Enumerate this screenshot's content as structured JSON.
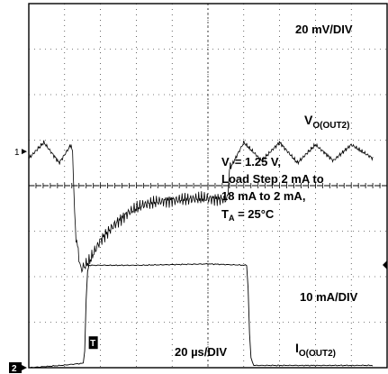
{
  "chart_data": {
    "type": "line",
    "title": "",
    "x_scale": "20 µs/DIV",
    "grid": true,
    "conditions": [
      "V_I = 1.25 V,",
      "Load Step 2 mA to",
      "18 mA to 2 mA,",
      "T_A = 25°C"
    ],
    "series": [
      {
        "name": "VO(OUT2)",
        "scale": "20 mV/DIV",
        "channel_marker": "1",
        "x_div": [
          0.0,
          0.42,
          0.85,
          1.18,
          1.22,
          1.3,
          1.45,
          1.7,
          2.0,
          2.4,
          2.8,
          3.2,
          3.6,
          4.0,
          4.8,
          5.55,
          5.6,
          6.0,
          6.5,
          7.0,
          7.5,
          8.0,
          8.5,
          9.0,
          9.6
        ],
        "y_div": [
          0.6,
          0.95,
          0.5,
          0.9,
          0.72,
          -1.0,
          -1.85,
          -1.65,
          -1.2,
          -0.85,
          -0.58,
          -0.42,
          -0.35,
          -0.32,
          -0.28,
          -0.3,
          0.35,
          0.95,
          0.55,
          0.95,
          0.5,
          0.9,
          0.55,
          0.9,
          0.6
        ]
      },
      {
        "name": "IO(OUT2)",
        "scale": "10 mA/DIV",
        "channel_marker": "2",
        "trigger_marker": "T",
        "x_div": [
          0.0,
          0.9,
          1.55,
          1.62,
          1.68,
          3.0,
          5.0,
          6.1,
          6.18,
          6.28,
          7.5,
          9.6
        ],
        "y_div": [
          -4.0,
          -3.95,
          -3.9,
          -1.95,
          -1.75,
          -1.75,
          -1.72,
          -1.75,
          -3.75,
          -3.95,
          -3.95,
          -3.95
        ]
      }
    ],
    "annotations": {
      "v_scale": "20 mV/DIV",
      "v_label": "VO(OUT2)",
      "i_scale": "10 mA/DIV",
      "i_label": "IO(OUT2)",
      "time_scale": "20 µs/DIV"
    }
  }
}
